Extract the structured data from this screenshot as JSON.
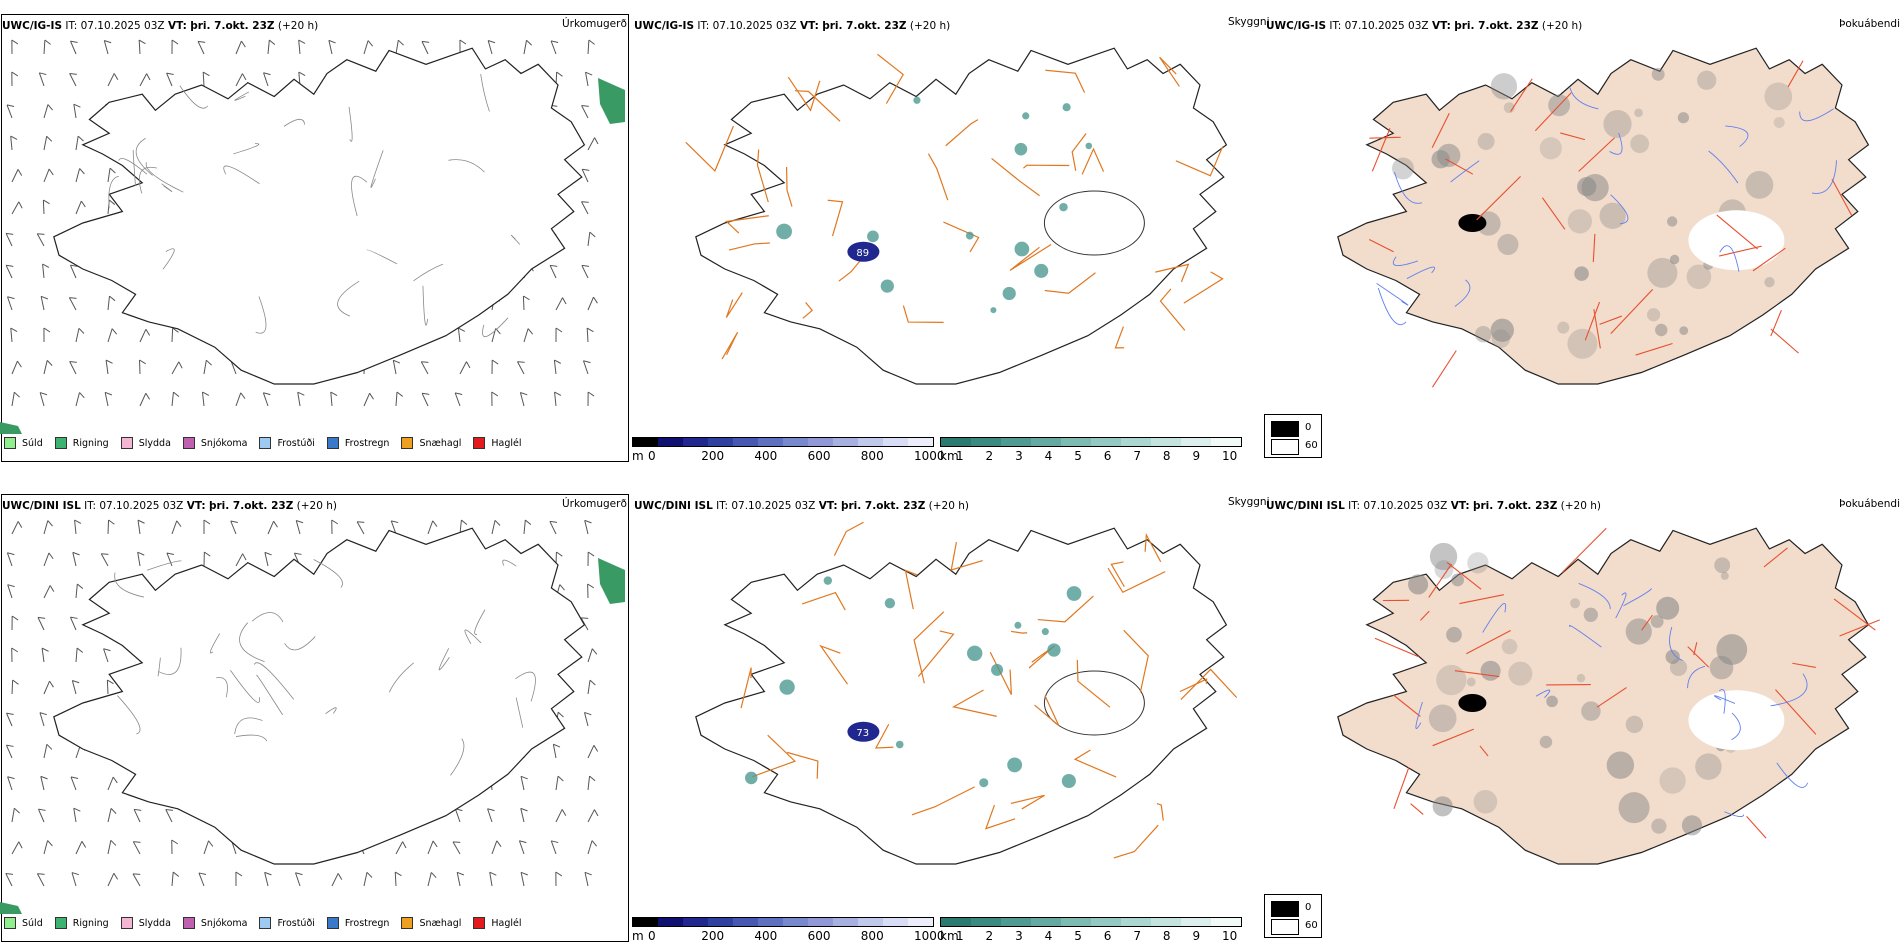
{
  "rows": [
    {
      "precip": {
        "model": "UWC/IG-IS",
        "meta": "IT: 07.10.2025 03Z",
        "vt_label": "VT:",
        "vt": "þri. 7.okt. 23Z",
        "lead": "(+20 h)",
        "title": "Úrkomugerð"
      },
      "vis": {
        "model": "UWC/IG-IS",
        "meta": "IT: 07.10.2025 03Z",
        "vt_label": "VT:",
        "vt": "þri. 7.okt. 23Z",
        "lead": "(+20 h)",
        "title": "Skyggni",
        "label_a": "89"
      },
      "fog": {
        "model": "UWC/IG-IS",
        "meta": "IT: 07.10.2025 03Z",
        "vt_label": "VT:",
        "vt": "þri. 7.okt. 23Z",
        "lead": "(+20 h)",
        "title": "Þokuábendi"
      }
    },
    {
      "precip": {
        "model": "UWC/DINI ISL",
        "meta": "IT: 07.10.2025 03Z",
        "vt_label": "VT:",
        "vt": "þri. 7.okt. 23Z",
        "lead": "(+20 h)",
        "title": "Úrkomugerð"
      },
      "vis": {
        "model": "UWC/DINI ISL",
        "meta": "IT: 07.10.2025 03Z",
        "vt_label": "VT:",
        "vt": "þri. 7.okt. 23Z",
        "lead": "(+20 h)",
        "title": "Skyggni",
        "label_a": "73"
      },
      "fog": {
        "model": "UWC/DINI ISL",
        "meta": "IT: 07.10.2025 03Z",
        "vt_label": "VT:",
        "vt": "þri. 7.okt. 23Z",
        "lead": "(+20 h)",
        "title": "Þokuábendi"
      }
    }
  ],
  "legend_precip": [
    {
      "label": "Súld",
      "color": "#90ee90"
    },
    {
      "label": "Rigning",
      "color": "#3cb371"
    },
    {
      "label": "Slydda",
      "color": "#f4b6d2"
    },
    {
      "label": "Snjókoma",
      "color": "#c060b0"
    },
    {
      "label": "Frostúði",
      "color": "#9ec9f0"
    },
    {
      "label": "Frostregn",
      "color": "#3a78c8"
    },
    {
      "label": "Snæhagl",
      "color": "#f0a020"
    },
    {
      "label": "Haglél",
      "color": "#e41a1c"
    }
  ],
  "cbar_m": {
    "unit": "m",
    "ticks": [
      "0",
      "200",
      "400",
      "600",
      "800",
      "1000"
    ],
    "colors": [
      "#000000",
      "#101070",
      "#202890",
      "#3040a0",
      "#4858b0",
      "#6070c0",
      "#7888cc",
      "#9098d8",
      "#a8b0e0",
      "#c0c8ec",
      "#d8dcf4",
      "#ececfa"
    ]
  },
  "cbar_km": {
    "unit": "km",
    "ticks": [
      "1",
      "2",
      "3",
      "4",
      "5",
      "6",
      "7",
      "8",
      "9",
      "10"
    ],
    "colors": [
      "#2a7a72",
      "#3b8a82",
      "#4f9a92",
      "#64aaa2",
      "#7cbab2",
      "#94c8c2",
      "#acd6d0",
      "#c4e2de",
      "#dcefec",
      "#f2faf8"
    ]
  },
  "fog_box": {
    "low": "0",
    "high": "60",
    "low_color": "#000000",
    "high_color": "#ffffff"
  },
  "colors": {
    "coast": "#1a1a1a",
    "roads": "#e07820",
    "fog_fill": "#f2dccb",
    "fog_roads": "#e85030",
    "rivers": "#6080f0",
    "glacier": "#ffffff"
  }
}
